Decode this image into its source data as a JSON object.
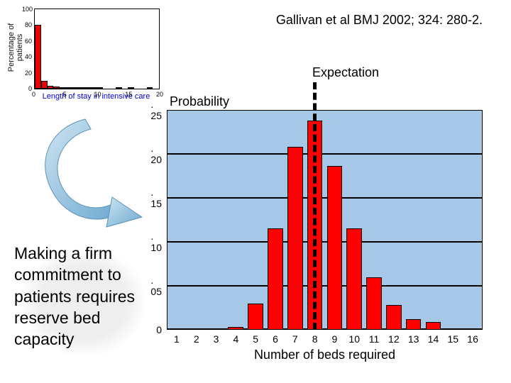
{
  "citation": "Gallivan et al BMJ 2002; 324: 280-2.",
  "commitment_text": "Making a firm commitment to patients requires reserve bed capacity",
  "small_histogram": {
    "type": "histogram",
    "ylabel": "Percentage of patients",
    "xlabel": "Length of stay in intensive care",
    "ylim": [
      0,
      100
    ],
    "yticks": [
      0,
      20,
      40,
      60,
      80,
      100
    ],
    "xlim": [
      0,
      20
    ],
    "xticks": [
      0,
      5,
      10,
      15,
      20
    ],
    "bar_color": "#ee0000",
    "background_color": "#ffffff",
    "axis_color": "#000000",
    "xlabel_color": "#0000dd",
    "fontsize": 11,
    "bin_width": 1,
    "bins_x": [
      0.5,
      1.5,
      2.5,
      3.5,
      4.5,
      5.5,
      6.5,
      7.5,
      8.5,
      9.5,
      10.5,
      13.5,
      15.5,
      18.5
    ],
    "values": [
      80,
      10,
      4,
      3,
      2,
      2,
      1.5,
      1.2,
      1,
      0.8,
      0.7,
      0.5,
      0.5,
      0.4
    ]
  },
  "expectation_label": "Expectation",
  "main_chart": {
    "type": "bar",
    "ylabel": "Probability",
    "xlabel": "Number of beds required",
    "categories": [
      1,
      2,
      3,
      4,
      5,
      6,
      7,
      8,
      9,
      10,
      11,
      12,
      13,
      14,
      15,
      16
    ],
    "values": [
      0,
      0,
      0,
      0.003,
      0.03,
      0.115,
      0.208,
      0.238,
      0.186,
      0.115,
      0.06,
      0.028,
      0.012,
      0.009,
      0.001,
      0.001
    ],
    "bar_color": "#ff0000",
    "bar_border": "#000000",
    "grid_fill": "#a6c8e6",
    "grid_border": "#000000",
    "background_color": "#ffffff",
    "ylim": [
      0,
      0.25
    ],
    "yticks": [
      0,
      0.05,
      0.1,
      0.15,
      0.2,
      0.25
    ],
    "ytick_labels": [
      "0",
      ". 05",
      ". 10",
      ". 15",
      ". 20",
      ". 25"
    ],
    "bar_width": 0.78,
    "label_fontsize": 18,
    "tick_fontsize": 14,
    "expectation_x": 8.0,
    "expectation_line_style": "dashed",
    "expectation_line_width": 5,
    "expectation_line_color": "#000000"
  },
  "arrow": {
    "color": "#7bb5d9",
    "type": "curved-swoop"
  }
}
